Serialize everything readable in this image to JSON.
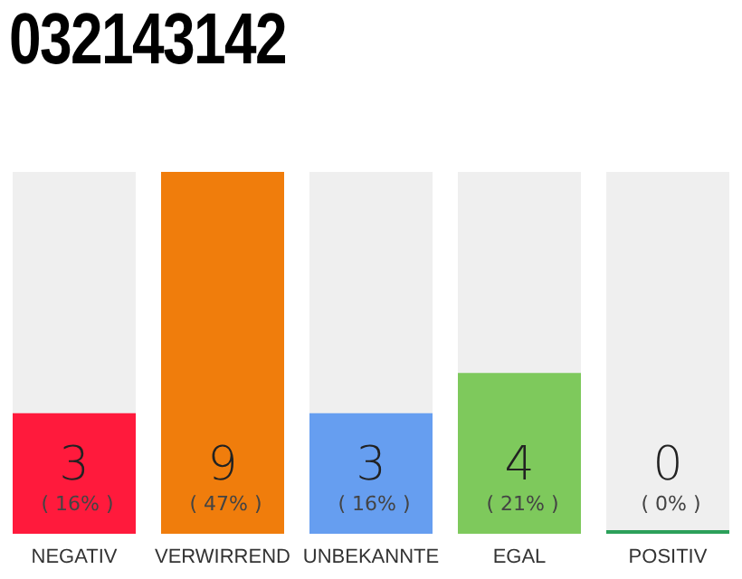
{
  "chart_data": {
    "type": "bar",
    "title": "032143142",
    "categories": [
      "NEGATIV",
      "VERWIRREND",
      "UNBEKANNTE",
      "EGAL",
      "POSITIV"
    ],
    "values": [
      3,
      9,
      3,
      4,
      0
    ],
    "colors": [
      "#ff1a3c",
      "#f07d0c",
      "#669ef0",
      "#7ec95c",
      "#2ca05a"
    ],
    "value_labels": [
      "3 ( 16% )",
      "9 ( 47% )",
      "3 ( 16% )",
      "4 ( 21% )",
      "0 ( 0% )"
    ]
  }
}
